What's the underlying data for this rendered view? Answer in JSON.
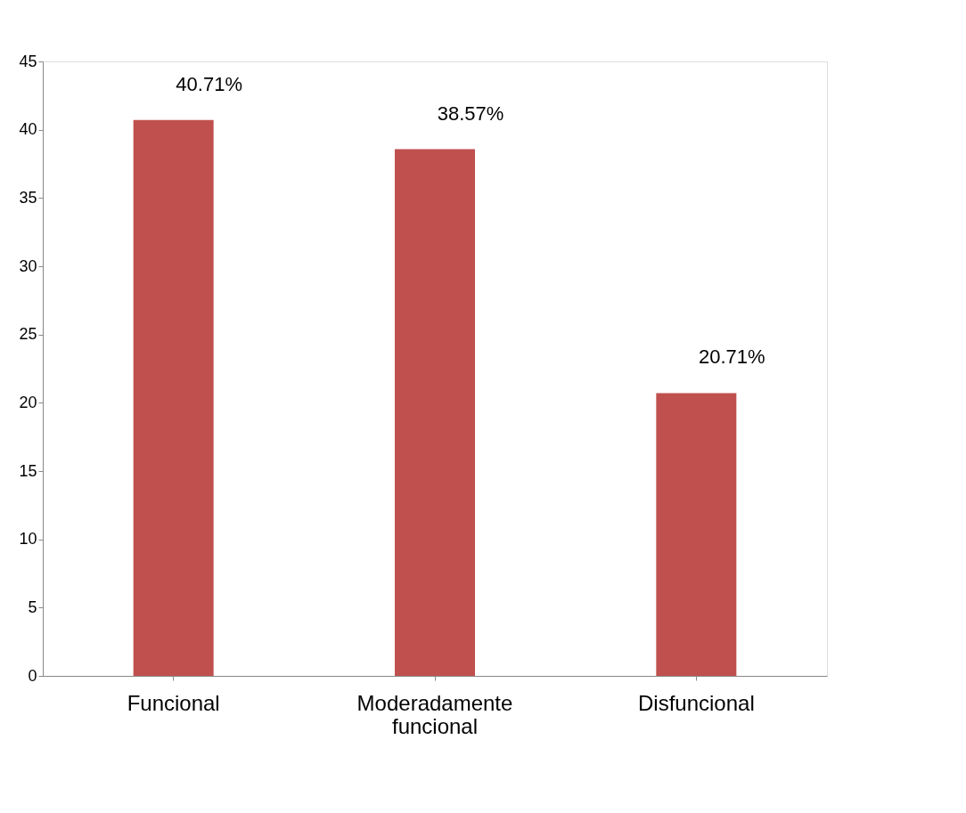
{
  "chart_data": {
    "type": "bar",
    "categories": [
      "Funcional",
      "Moderadamente funcional",
      "Disfuncional"
    ],
    "values": [
      40.71,
      38.57,
      20.71
    ],
    "value_labels": [
      "40.71%",
      "38.57%",
      "20.71%"
    ],
    "color": "#c0504d",
    "ylim": [
      0,
      45
    ],
    "yticks": [
      0,
      5,
      10,
      15,
      20,
      25,
      30,
      35,
      40,
      45
    ],
    "grid": false
  }
}
